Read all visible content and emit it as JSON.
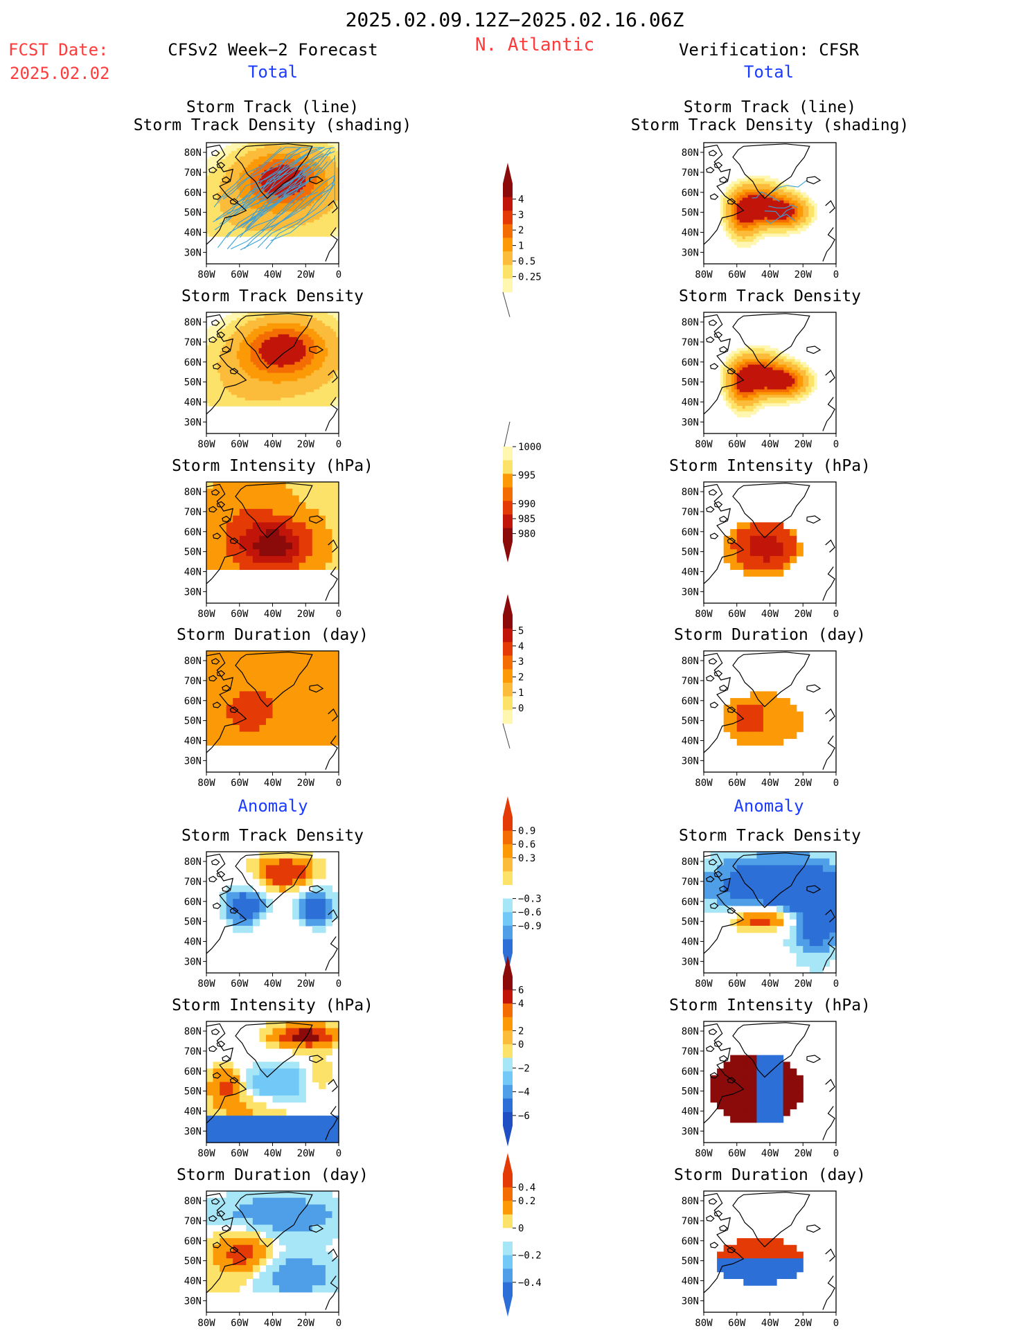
{
  "header": {
    "date_range": "2025.02.09.12Z−2025.02.16.06Z",
    "fcst_label": "FCST Date:",
    "fcst_date": "2025.02.02",
    "region": "N. Atlantic",
    "left_title": "CFSv2 Week−2 Forecast",
    "right_title": "Verification: CFSR",
    "total_label": "Total",
    "anomaly_label": "Anomaly"
  },
  "axes": {
    "lat_ticks": [
      "80N",
      "70N",
      "60N",
      "50N",
      "40N",
      "30N"
    ],
    "lon_ticks": [
      "80W",
      "60W",
      "40W",
      "20W",
      "0"
    ]
  },
  "colors": {
    "title_red": "#ff3a3a",
    "title_blue": "#1b3cff",
    "pos": [
      "#fff6b0",
      "#fde26a",
      "#fcbc3b",
      "#fb9a06",
      "#f46d02",
      "#e43a05",
      "#c2150a",
      "#8b0a0a"
    ],
    "neg": [
      "#a6e6f6",
      "#72c8f7",
      "#4f9ee8",
      "#2c6fd6",
      "#1f4fc2"
    ]
  },
  "colorbars": [
    {
      "id": "cb1",
      "labels": [
        "4",
        "3",
        "2",
        "1",
        "0.5",
        "0.25"
      ]
    },
    {
      "id": "cb2",
      "labels": [
        "1000",
        "995",
        "990",
        "985",
        "980"
      ]
    },
    {
      "id": "cb3",
      "labels": [
        "5",
        "4",
        "3",
        "2",
        "1",
        "0"
      ]
    },
    {
      "id": "cb4",
      "labels": [
        "0.9",
        "0.6",
        "0.3",
        "−0.3",
        "−0.6",
        "−0.9"
      ]
    },
    {
      "id": "cb5",
      "labels": [
        "6",
        "4",
        "2",
        "0",
        "−2",
        "−4",
        "−6"
      ]
    },
    {
      "id": "cb6",
      "labels": [
        "0.4",
        "0.2",
        "0",
        "−0.2",
        "−0.4"
      ]
    }
  ],
  "panels": [
    {
      "id": "p1",
      "col": "left",
      "title": "Storm Track (line)",
      "title2": "Storm Track Density (shading)",
      "kind": "density",
      "tracks": true
    },
    {
      "id": "p2",
      "col": "left",
      "title": "Storm Track Density",
      "kind": "density"
    },
    {
      "id": "p3",
      "col": "left",
      "title": "Storm Intensity (hPa)",
      "kind": "intensity"
    },
    {
      "id": "p4",
      "col": "left",
      "title": "Storm Duration (day)",
      "kind": "duration"
    },
    {
      "id": "p5",
      "col": "left",
      "title": "Storm Track Density",
      "kind": "anom_density"
    },
    {
      "id": "p6",
      "col": "left",
      "title": "Storm Intensity (hPa)",
      "kind": "anom_intensity"
    },
    {
      "id": "p7",
      "col": "left",
      "title": "Storm Duration (day)",
      "kind": "anom_duration"
    },
    {
      "id": "q1",
      "col": "right",
      "title": "Storm Track (line)",
      "title2": "Storm Track Density (shading)",
      "kind": "density_v",
      "tracks": true
    },
    {
      "id": "q2",
      "col": "right",
      "title": "Storm Track Density",
      "kind": "density_v"
    },
    {
      "id": "q3",
      "col": "right",
      "title": "Storm Intensity (hPa)",
      "kind": "intensity_v"
    },
    {
      "id": "q4",
      "col": "right",
      "title": "Storm Duration (day)",
      "kind": "duration_v"
    },
    {
      "id": "q5",
      "col": "right",
      "title": "Storm Track Density",
      "kind": "anom_density_v"
    },
    {
      "id": "q6",
      "col": "right",
      "title": "Storm Intensity (hPa)",
      "kind": "anom_intensity_v"
    },
    {
      "id": "q7",
      "col": "right",
      "title": "Storm Duration (day)",
      "kind": "anom_duration_v"
    }
  ],
  "chart_data": {
    "type": "heatmap",
    "region_lon": [
      -80,
      0
    ],
    "region_lat": [
      25,
      85
    ],
    "density_levels": [
      0.25,
      0.5,
      1,
      2,
      3,
      4
    ],
    "intensity_levels": [
      1000,
      995,
      990,
      985,
      980
    ],
    "duration_levels": [
      0,
      1,
      2,
      3,
      4,
      5
    ],
    "anom_density_levels": [
      -0.9,
      -0.6,
      -0.3,
      0.3,
      0.6,
      0.9
    ],
    "anom_intensity_levels": [
      -6,
      -4,
      -2,
      0,
      2,
      4,
      6
    ],
    "anom_duration_levels": [
      -0.4,
      -0.2,
      0,
      0.2,
      0.4
    ]
  }
}
